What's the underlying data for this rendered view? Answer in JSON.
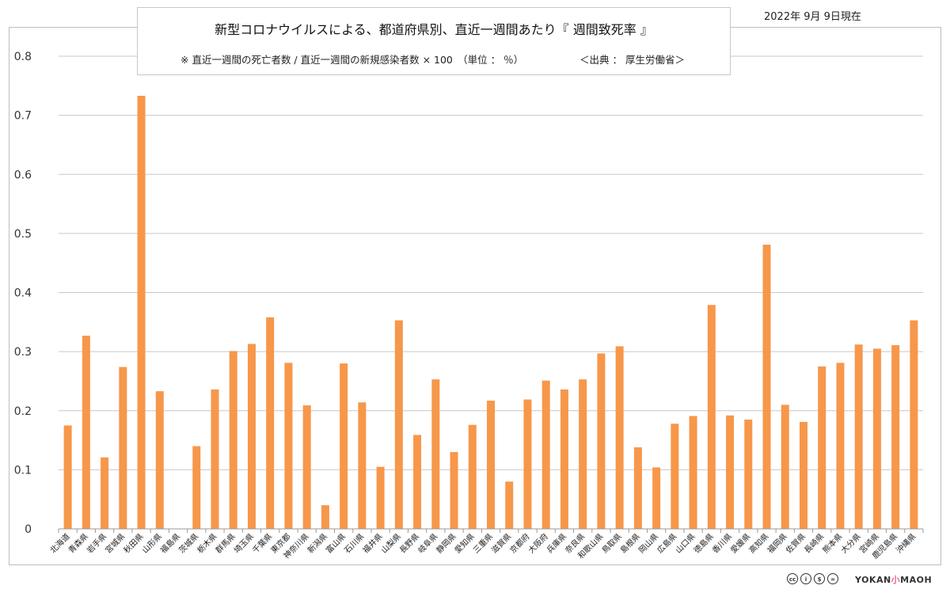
{
  "header": {
    "title": "新型コロナウイルスによる、都道府県別、直近一週間あたり『 週間致死率 』",
    "note": "※ 直近一週間の死亡者数 / 直近一週間の新規感染者数 × 100　（単位 ： ％）",
    "source": "＜出典 ： 厚生労働省＞",
    "date": "2022年 9月 9日現在"
  },
  "footer": {
    "brand_left": "YOKAN",
    "brand_mid": "小",
    "brand_right": "MAOH"
  },
  "colors": {
    "bar": "#F7974A",
    "grid": "#c8c8c8",
    "axis": "#999999"
  },
  "chart_data": {
    "type": "bar",
    "title": "新型コロナウイルスによる、都道府県別、直近一週間あたり『 週間致死率 』",
    "xlabel": "",
    "ylabel": "",
    "ylim": [
      0,
      0.8
    ],
    "yticks": [
      0,
      0.1,
      0.2,
      0.3,
      0.4,
      0.5,
      0.6,
      0.7,
      0.8
    ],
    "ytick_labels": [
      "0",
      "0.1",
      "0.2",
      "0.3",
      "0.4",
      "0.5",
      "0.6",
      "0.7",
      "0.8"
    ],
    "grid": true,
    "legend": "none",
    "categories": [
      "北海道",
      "青森県",
      "岩手県",
      "宮城県",
      "秋田県",
      "山形県",
      "福島県",
      "茨城県",
      "栃木県",
      "群馬県",
      "埼玉県",
      "千葉県",
      "東京都",
      "神奈川県",
      "新潟県",
      "富山県",
      "石川県",
      "福井県",
      "山梨県",
      "長野県",
      "岐阜県",
      "静岡県",
      "愛知県",
      "三重県",
      "滋賀県",
      "京都府",
      "大阪府",
      "兵庫県",
      "奈良県",
      "和歌山県",
      "鳥取県",
      "島根県",
      "岡山県",
      "広島県",
      "山口県",
      "徳島県",
      "香川県",
      "愛媛県",
      "高知県",
      "福岡県",
      "佐賀県",
      "長崎県",
      "熊本県",
      "大分県",
      "宮崎県",
      "鹿児島県",
      "沖縄県"
    ],
    "values": [
      0.175,
      0.327,
      0.121,
      0.274,
      0.733,
      0.233,
      0.0,
      0.14,
      0.236,
      0.301,
      0.313,
      0.358,
      0.281,
      0.209,
      0.04,
      0.28,
      0.214,
      0.105,
      0.353,
      0.159,
      0.253,
      0.13,
      0.176,
      0.217,
      0.08,
      0.219,
      0.251,
      0.236,
      0.253,
      0.297,
      0.309,
      0.138,
      0.104,
      0.178,
      0.191,
      0.379,
      0.192,
      0.185,
      0.481,
      0.21,
      0.181,
      0.275,
      0.281,
      0.312,
      0.305,
      0.311,
      0.353
    ]
  }
}
